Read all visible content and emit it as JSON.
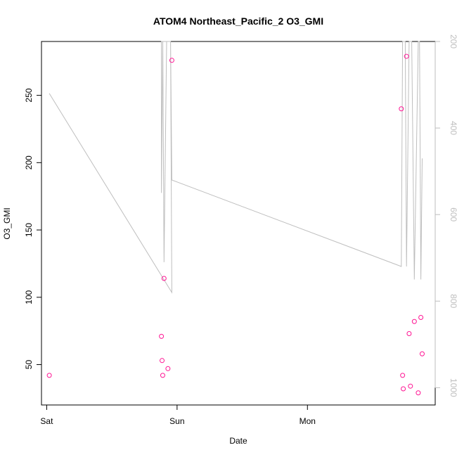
{
  "chart_data": {
    "type": "scatter",
    "title": "ATOM4 Northeast_Pacific_2 O3_GMI",
    "xlabel": "Date",
    "ylabel": "O3_GMI",
    "x_axis": {
      "type": "date",
      "ticks": [
        {
          "label": "Sat",
          "value": 0
        },
        {
          "label": "Sun",
          "value": 1
        },
        {
          "label": "Mon",
          "value": 2
        }
      ],
      "range": [
        -0.04,
        2.98
      ]
    },
    "y_axis": {
      "range": [
        20,
        290
      ],
      "ticks": [
        50,
        100,
        150,
        200,
        250
      ]
    },
    "y2_axis": {
      "reversed": true,
      "range": [
        200,
        1040
      ],
      "ticks": [
        200,
        400,
        600,
        800,
        1000
      ],
      "color": "#bebebe"
    },
    "grid": false,
    "series": [
      {
        "kind": "points",
        "axis": "left",
        "color": "#ff1493",
        "points": [
          {
            "x": 0.02,
            "y": 42
          },
          {
            "x": 0.88,
            "y": 71
          },
          {
            "x": 0.885,
            "y": 53
          },
          {
            "x": 0.89,
            "y": 42
          },
          {
            "x": 0.9,
            "y": 114
          },
          {
            "x": 0.93,
            "y": 47
          },
          {
            "x": 0.96,
            "y": 276
          },
          {
            "x": 2.72,
            "y": 240
          },
          {
            "x": 2.73,
            "y": 42
          },
          {
            "x": 2.735,
            "y": 32
          },
          {
            "x": 2.76,
            "y": 279
          },
          {
            "x": 2.78,
            "y": 73
          },
          {
            "x": 2.79,
            "y": 34
          },
          {
            "x": 2.82,
            "y": 82
          },
          {
            "x": 2.85,
            "y": 29
          },
          {
            "x": 2.87,
            "y": 85
          },
          {
            "x": 2.88,
            "y": 58
          }
        ]
      },
      {
        "kind": "line",
        "axis": "right",
        "color": "#bebebe",
        "points": [
          {
            "x": 0.02,
            "y": 320
          },
          {
            "x": 0.96,
            "y": 780
          },
          {
            "x": 0.95,
            "y": 200
          },
          {
            "x": 0.92,
            "y": 200
          },
          {
            "x": 0.9,
            "y": 710
          },
          {
            "x": 0.89,
            "y": 200
          },
          {
            "x": 0.88,
            "y": 550
          },
          {
            "x": 0.88,
            "y": 200
          },
          {
            "x": 0.89,
            "y": 200
          },
          {
            "x": 0.95,
            "y": 200
          },
          {
            "x": 0.96,
            "y": 520
          },
          {
            "x": 2.72,
            "y": 720
          },
          {
            "x": 2.73,
            "y": 200
          },
          {
            "x": 2.75,
            "y": 200
          },
          {
            "x": 2.76,
            "y": 720
          },
          {
            "x": 2.78,
            "y": 200
          },
          {
            "x": 2.8,
            "y": 200
          },
          {
            "x": 2.82,
            "y": 750
          },
          {
            "x": 2.85,
            "y": 200
          },
          {
            "x": 2.86,
            "y": 200
          },
          {
            "x": 2.87,
            "y": 750
          },
          {
            "x": 2.88,
            "y": 470
          }
        ]
      }
    ]
  }
}
